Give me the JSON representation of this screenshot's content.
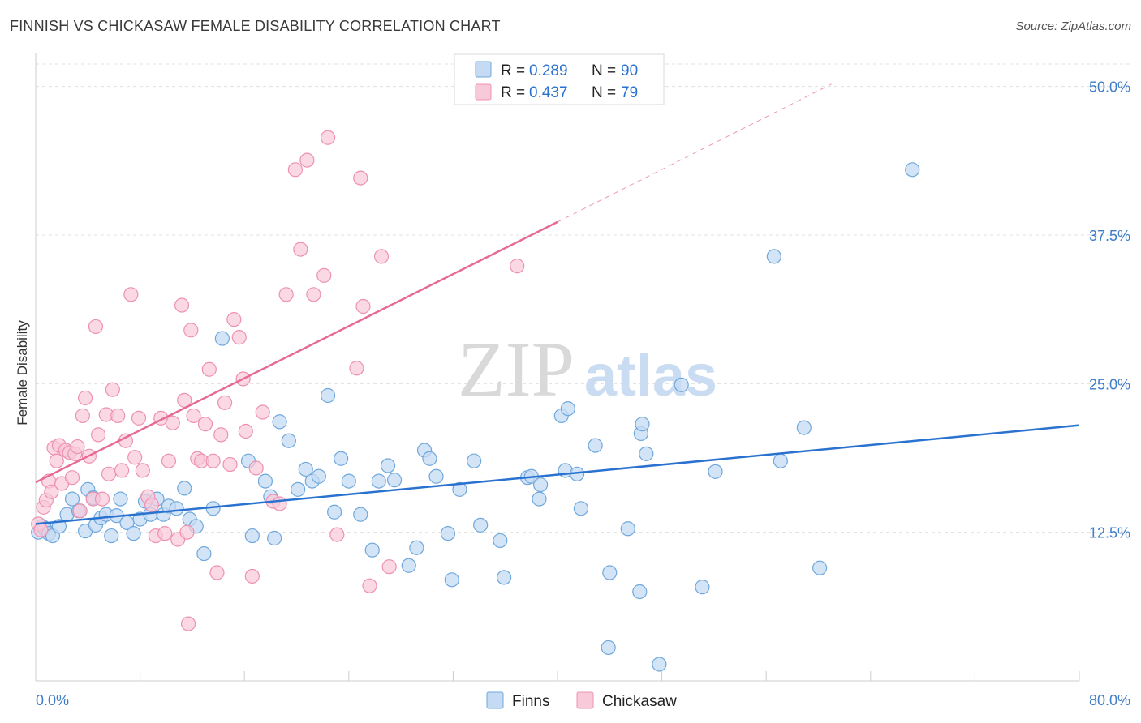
{
  "header": {
    "title": "FINNISH VS CHICKASAW FEMALE DISABILITY CORRELATION CHART",
    "source": "Source: ZipAtlas.com"
  },
  "watermark": {
    "zip": "ZIP",
    "atlas": "atlas"
  },
  "colors": {
    "finns": "#6fa8dc",
    "finns_fill": "#c5dbf4",
    "finns_line": "#2a72d0",
    "chickasaw": "#ee91b1",
    "chickasaw_fill": "#f8c9d9",
    "chickasaw_line": "#e66a93",
    "axis_label": "#3d7cc9",
    "grid": "#e0e0e0"
  },
  "legend_top": {
    "rows": [
      {
        "r_label": "R = ",
        "r_value": "0.289",
        "n_label": "N = ",
        "n_value": "90"
      },
      {
        "r_label": "R = ",
        "r_value": "0.437",
        "n_label": "N = ",
        "n_value": "79"
      }
    ]
  },
  "legend_bottom": {
    "items": [
      "Finns",
      "Chickasaw"
    ]
  },
  "chart_data": {
    "type": "scatter",
    "ylabel": "Female Disability",
    "xlim": [
      0,
      80
    ],
    "ylim": [
      0,
      52.5
    ],
    "x_tick_labels": [
      "0.0%",
      "80.0%"
    ],
    "y_ticks": [
      12.5,
      25.0,
      37.5,
      50.0
    ],
    "y_tick_labels": [
      "12.5%",
      "25.0%",
      "37.5%",
      "50.0%"
    ],
    "grid": true,
    "legend_position": "top-center",
    "series": [
      {
        "name": "Finns",
        "trend": {
          "x0": 0,
          "y0": 13.2,
          "x1": 80,
          "y1": 21.5
        },
        "points": [
          [
            0.2,
            12.5
          ],
          [
            0.5,
            13.0
          ],
          [
            0.7,
            12.8
          ],
          [
            1.0,
            12.4
          ],
          [
            1.3,
            12.2
          ],
          [
            1.8,
            13.0
          ],
          [
            2.4,
            14.0
          ],
          [
            2.8,
            15.3
          ],
          [
            3.3,
            14.3
          ],
          [
            3.8,
            12.6
          ],
          [
            4.0,
            16.1
          ],
          [
            4.4,
            15.4
          ],
          [
            4.6,
            13.1
          ],
          [
            5.0,
            13.7
          ],
          [
            5.4,
            14.0
          ],
          [
            5.8,
            12.2
          ],
          [
            6.2,
            13.9
          ],
          [
            6.5,
            15.3
          ],
          [
            7.0,
            13.3
          ],
          [
            7.5,
            12.4
          ],
          [
            8.0,
            13.6
          ],
          [
            8.4,
            15.1
          ],
          [
            8.8,
            14.0
          ],
          [
            9.3,
            15.3
          ],
          [
            9.8,
            14.0
          ],
          [
            10.2,
            14.7
          ],
          [
            10.8,
            14.5
          ],
          [
            11.4,
            16.2
          ],
          [
            11.8,
            13.6
          ],
          [
            12.3,
            13.0
          ],
          [
            12.9,
            10.7
          ],
          [
            13.6,
            14.5
          ],
          [
            14.3,
            28.8
          ],
          [
            16.3,
            18.5
          ],
          [
            16.6,
            12.2
          ],
          [
            17.6,
            16.8
          ],
          [
            18.0,
            15.5
          ],
          [
            18.3,
            12.0
          ],
          [
            18.7,
            21.8
          ],
          [
            19.4,
            20.2
          ],
          [
            20.1,
            16.1
          ],
          [
            20.7,
            17.8
          ],
          [
            21.2,
            16.8
          ],
          [
            21.7,
            17.2
          ],
          [
            22.4,
            24.0
          ],
          [
            22.9,
            14.2
          ],
          [
            23.4,
            18.7
          ],
          [
            24.0,
            16.8
          ],
          [
            24.9,
            14.0
          ],
          [
            25.8,
            11.0
          ],
          [
            26.3,
            16.8
          ],
          [
            27.0,
            18.1
          ],
          [
            27.5,
            16.9
          ],
          [
            28.6,
            9.7
          ],
          [
            29.2,
            11.2
          ],
          [
            29.8,
            19.4
          ],
          [
            30.2,
            18.7
          ],
          [
            30.7,
            17.2
          ],
          [
            31.6,
            12.4
          ],
          [
            31.9,
            8.5
          ],
          [
            32.5,
            16.1
          ],
          [
            33.6,
            18.5
          ],
          [
            34.1,
            13.1
          ],
          [
            35.6,
            11.8
          ],
          [
            35.9,
            8.7
          ],
          [
            37.7,
            17.1
          ],
          [
            38.0,
            17.2
          ],
          [
            38.6,
            15.3
          ],
          [
            38.7,
            16.5
          ],
          [
            40.3,
            22.3
          ],
          [
            40.6,
            17.7
          ],
          [
            40.8,
            22.9
          ],
          [
            41.5,
            17.4
          ],
          [
            41.8,
            14.5
          ],
          [
            42.9,
            19.8
          ],
          [
            43.9,
            2.8
          ],
          [
            44.0,
            9.1
          ],
          [
            45.4,
            12.8
          ],
          [
            46.3,
            7.5
          ],
          [
            46.4,
            20.8
          ],
          [
            46.5,
            21.6
          ],
          [
            46.8,
            19.1
          ],
          [
            47.8,
            1.4
          ],
          [
            49.5,
            24.9
          ],
          [
            51.1,
            7.9
          ],
          [
            52.1,
            17.6
          ],
          [
            56.6,
            35.7
          ],
          [
            57.1,
            18.5
          ],
          [
            58.9,
            21.3
          ],
          [
            60.1,
            9.5
          ],
          [
            67.2,
            43.0
          ]
        ]
      },
      {
        "name": "Chickasaw",
        "trend": {
          "x0": 0,
          "y0": 16.7,
          "x1": 40,
          "y1": 38.6,
          "dash_x1": 61,
          "dash_y1": 50.2
        },
        "points": [
          [
            0.2,
            13.2
          ],
          [
            0.4,
            12.7
          ],
          [
            0.6,
            14.6
          ],
          [
            0.8,
            15.2
          ],
          [
            1.0,
            16.8
          ],
          [
            1.2,
            15.9
          ],
          [
            1.4,
            19.6
          ],
          [
            1.6,
            18.5
          ],
          [
            1.8,
            19.8
          ],
          [
            2.0,
            16.6
          ],
          [
            2.3,
            19.4
          ],
          [
            2.6,
            19.2
          ],
          [
            2.8,
            17.1
          ],
          [
            3.0,
            19.1
          ],
          [
            3.2,
            19.7
          ],
          [
            3.4,
            14.3
          ],
          [
            3.6,
            22.3
          ],
          [
            3.8,
            23.8
          ],
          [
            4.1,
            18.9
          ],
          [
            4.4,
            15.3
          ],
          [
            4.6,
            29.8
          ],
          [
            4.8,
            20.7
          ],
          [
            5.1,
            15.3
          ],
          [
            5.4,
            22.4
          ],
          [
            5.6,
            17.4
          ],
          [
            5.9,
            24.5
          ],
          [
            6.3,
            22.3
          ],
          [
            6.6,
            17.7
          ],
          [
            6.9,
            20.2
          ],
          [
            7.3,
            32.5
          ],
          [
            7.6,
            18.8
          ],
          [
            7.9,
            22.1
          ],
          [
            8.2,
            17.7
          ],
          [
            8.6,
            15.5
          ],
          [
            8.9,
            14.8
          ],
          [
            9.2,
            12.2
          ],
          [
            9.6,
            22.1
          ],
          [
            9.9,
            12.4
          ],
          [
            10.2,
            18.5
          ],
          [
            10.5,
            21.7
          ],
          [
            10.9,
            11.9
          ],
          [
            11.2,
            31.6
          ],
          [
            11.4,
            23.6
          ],
          [
            11.6,
            12.5
          ],
          [
            11.7,
            4.8
          ],
          [
            11.9,
            29.5
          ],
          [
            12.1,
            22.3
          ],
          [
            12.4,
            18.7
          ],
          [
            12.7,
            18.5
          ],
          [
            13.0,
            21.6
          ],
          [
            13.3,
            26.2
          ],
          [
            13.6,
            18.5
          ],
          [
            13.9,
            9.1
          ],
          [
            14.2,
            20.7
          ],
          [
            14.5,
            23.4
          ],
          [
            14.9,
            18.2
          ],
          [
            15.2,
            30.4
          ],
          [
            15.6,
            28.9
          ],
          [
            15.9,
            25.4
          ],
          [
            16.1,
            21.0
          ],
          [
            16.6,
            8.8
          ],
          [
            16.9,
            17.9
          ],
          [
            17.4,
            22.6
          ],
          [
            18.2,
            15.1
          ],
          [
            18.7,
            14.9
          ],
          [
            19.2,
            32.5
          ],
          [
            19.9,
            43.0
          ],
          [
            20.3,
            36.3
          ],
          [
            20.8,
            43.8
          ],
          [
            21.3,
            32.5
          ],
          [
            22.1,
            34.1
          ],
          [
            22.4,
            45.7
          ],
          [
            23.1,
            12.3
          ],
          [
            24.6,
            26.3
          ],
          [
            24.9,
            42.3
          ],
          [
            25.1,
            31.5
          ],
          [
            25.6,
            8.0
          ],
          [
            26.5,
            35.7
          ],
          [
            27.1,
            9.6
          ],
          [
            36.9,
            34.9
          ]
        ]
      }
    ]
  }
}
